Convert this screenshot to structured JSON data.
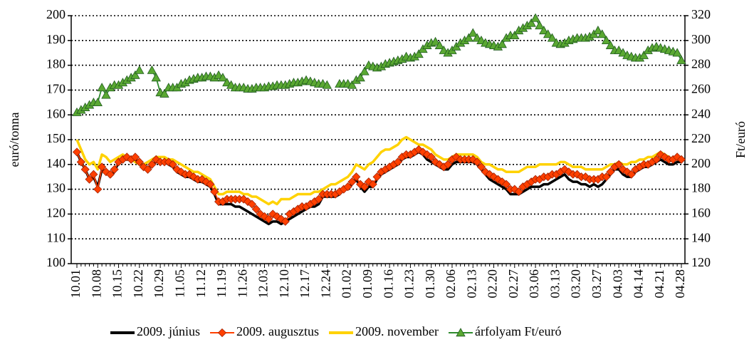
{
  "chart_data": {
    "type": "line",
    "ylabel": "euró/tonna",
    "y2label": "Ft/euró",
    "ylim": [
      100,
      200
    ],
    "yticks": [
      100,
      110,
      120,
      130,
      140,
      150,
      160,
      170,
      180,
      190,
      200
    ],
    "y2lim": [
      120,
      320
    ],
    "y2ticks": [
      120,
      140,
      160,
      180,
      200,
      220,
      240,
      260,
      280,
      300,
      320
    ],
    "grid": true,
    "legend": "bottom",
    "categories": [
      "10.01",
      null,
      null,
      null,
      null,
      "10.08",
      null,
      null,
      null,
      null,
      "10.15",
      null,
      null,
      null,
      null,
      "10.22",
      null,
      null,
      null,
      null,
      "10.29",
      null,
      null,
      null,
      null,
      "11.05",
      null,
      null,
      null,
      null,
      "11.12",
      null,
      null,
      null,
      null,
      "11.19",
      null,
      null,
      null,
      null,
      "11.26",
      null,
      null,
      null,
      null,
      "12.03",
      null,
      null,
      null,
      null,
      "12.10",
      null,
      null,
      null,
      null,
      "12.17",
      null,
      null,
      null,
      null,
      "12.24",
      null,
      null,
      null,
      null,
      "01.02",
      null,
      null,
      null,
      null,
      "01.09",
      null,
      null,
      null,
      null,
      "01.16",
      null,
      null,
      null,
      null,
      "01.23",
      null,
      null,
      null,
      null,
      "01.30",
      null,
      null,
      null,
      null,
      "02.06",
      null,
      null,
      null,
      null,
      "02.13",
      null,
      null,
      null,
      null,
      "02.20",
      null,
      null,
      null,
      null,
      "02.27",
      null,
      null,
      null,
      null,
      "03.06",
      null,
      null,
      null,
      null,
      "03.13",
      null,
      null,
      null,
      null,
      "03.20",
      null,
      null,
      null,
      null,
      "03.27",
      null,
      null,
      null,
      null,
      "04.03",
      null,
      null,
      null,
      null,
      "04.14",
      null,
      null,
      null,
      null,
      "04.21",
      null,
      null,
      null,
      null,
      "04.28"
    ],
    "series": [
      {
        "name": "2009. június",
        "color": "#000000",
        "marker": null,
        "axis": "y",
        "values": [
          145,
          141,
          138,
          134,
          135,
          131,
          138,
          137,
          135,
          137,
          141,
          142,
          142,
          142,
          142,
          141,
          139,
          138,
          140,
          141,
          141,
          141,
          140,
          139,
          137,
          136,
          135,
          135,
          134,
          133,
          133,
          132,
          131,
          128,
          124,
          124,
          124,
          124,
          123,
          123,
          122,
          121,
          120,
          119,
          118,
          117,
          116,
          117,
          117,
          116,
          117,
          118,
          119,
          120,
          121,
          122,
          123,
          123,
          124,
          127,
          127,
          127,
          127,
          128,
          130,
          130,
          132,
          134,
          131,
          129,
          131,
          131,
          134,
          136,
          137,
          138,
          139,
          140,
          142,
          143,
          143,
          144,
          145,
          144,
          142,
          141,
          140,
          139,
          138,
          138,
          140,
          141,
          141,
          141,
          141,
          141,
          140,
          138,
          136,
          134,
          133,
          132,
          131,
          130,
          128,
          128,
          128,
          129,
          130,
          131,
          131,
          131,
          132,
          132,
          133,
          134,
          135,
          136,
          134,
          133,
          133,
          132,
          132,
          131,
          132,
          131,
          132,
          134,
          136,
          138,
          138,
          136,
          135,
          135,
          137,
          138,
          139,
          139,
          140,
          141,
          142,
          141,
          140,
          140,
          141,
          141
        ]
      },
      {
        "name": "2009. augusztus",
        "color": "#ff4000",
        "marker": "diamond",
        "axis": "y",
        "values": [
          145,
          141,
          138,
          134,
          136,
          130,
          139,
          137,
          136,
          138,
          141,
          142,
          143,
          142,
          143,
          141,
          139,
          138,
          140,
          142,
          141,
          141,
          141,
          140,
          138,
          137,
          136,
          136,
          135,
          134,
          134,
          133,
          132,
          129,
          125,
          125,
          126,
          126,
          126,
          126,
          126,
          125,
          124,
          122,
          120,
          119,
          118,
          120,
          119,
          118,
          117,
          120,
          121,
          122,
          123,
          123,
          124,
          125,
          126,
          128,
          128,
          128,
          128,
          129,
          130,
          131,
          133,
          135,
          132,
          131,
          133,
          132,
          135,
          137,
          138,
          139,
          140,
          141,
          143,
          144,
          144,
          145,
          146,
          145,
          144,
          143,
          141,
          140,
          139,
          140,
          142,
          143,
          142,
          142,
          142,
          142,
          141,
          139,
          137,
          136,
          135,
          134,
          133,
          132,
          130,
          130,
          129,
          131,
          132,
          133,
          134,
          134,
          135,
          135,
          136,
          136,
          137,
          138,
          137,
          136,
          136,
          135,
          135,
          134,
          134,
          134,
          135,
          135,
          137,
          139,
          140,
          138,
          137,
          136,
          138,
          139,
          140,
          140,
          141,
          142,
          144,
          143,
          142,
          142,
          143,
          142
        ]
      },
      {
        "name": "2009. november",
        "color": "#ffd200",
        "marker": null,
        "axis": "y",
        "values": [
          150,
          146,
          142,
          140,
          141,
          138,
          144,
          143,
          141,
          142,
          143,
          144,
          143,
          142,
          141,
          140,
          140,
          141,
          142,
          143,
          143,
          143,
          142,
          142,
          141,
          140,
          139,
          138,
          137,
          137,
          136,
          135,
          134,
          131,
          128,
          128,
          129,
          129,
          129,
          129,
          128,
          128,
          127,
          127,
          126,
          125,
          124,
          125,
          124,
          126,
          126,
          126,
          127,
          128,
          128,
          128,
          128,
          129,
          129,
          130,
          131,
          132,
          132,
          133,
          134,
          135,
          137,
          140,
          139,
          138,
          140,
          141,
          143,
          145,
          146,
          146,
          147,
          148,
          150,
          151,
          150,
          149,
          148,
          148,
          147,
          146,
          144,
          143,
          142,
          142,
          143,
          144,
          144,
          144,
          144,
          144,
          143,
          141,
          140,
          140,
          139,
          138,
          138,
          137,
          137,
          137,
          137,
          138,
          139,
          139,
          139,
          140,
          140,
          140,
          140,
          140,
          141,
          141,
          140,
          139,
          139,
          139,
          138,
          138,
          138,
          138,
          138,
          139,
          140,
          140,
          141,
          140,
          140,
          141,
          141,
          142,
          142,
          143,
          143,
          144,
          145,
          144,
          143,
          142,
          142,
          141
        ]
      },
      {
        "name": "árfolyam Ft/euró",
        "color": "#2e8b2e",
        "marker": "triangle",
        "axis": "y2",
        "values": [
          242,
          244,
          246,
          248,
          250,
          250,
          262,
          256,
          262,
          264,
          264,
          266,
          268,
          270,
          272,
          276,
          null,
          null,
          276,
          270,
          258,
          257,
          262,
          262,
          262,
          265,
          266,
          268,
          269,
          270,
          270,
          271,
          271,
          270,
          272,
          270,
          266,
          264,
          262,
          262,
          262,
          261,
          261,
          262,
          262,
          262,
          263,
          263,
          264,
          264,
          264,
          265,
          266,
          266,
          267,
          268,
          267,
          266,
          265,
          265,
          264,
          null,
          null,
          265,
          265,
          265,
          264,
          268,
          270,
          275,
          280,
          279,
          278,
          279,
          281,
          282,
          283,
          284,
          285,
          287,
          286,
          287,
          289,
          293,
          296,
          298,
          299,
          296,
          292,
          290,
          292,
          295,
          298,
          300,
          302,
          306,
          302,
          300,
          298,
          297,
          296,
          295,
          297,
          302,
          304,
          304,
          308,
          310,
          312,
          314,
          318,
          312,
          308,
          305,
          302,
          298,
          297,
          298,
          300,
          301,
          302,
          302,
          302,
          303,
          305,
          308,
          305,
          300,
          296,
          292,
          292,
          290,
          288,
          287,
          286,
          286,
          288,
          292,
          294,
          295,
          294,
          293,
          292,
          291,
          290,
          284
        ]
      }
    ]
  }
}
